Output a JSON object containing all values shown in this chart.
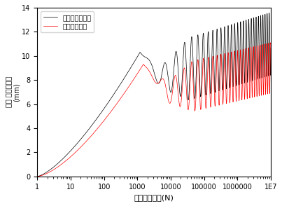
{
  "xlabel": "반복재하횟수(N)",
  "ylabel": "레일 누적침하량\n(mm)",
  "xlim": [
    1,
    10000000.0
  ],
  "ylim": [
    0,
    14
  ],
  "yticks": [
    0,
    2,
    4,
    6,
    8,
    10,
    12,
    14
  ],
  "legend_black": "블록식보강옹벽",
  "legend_red": "강성보강옹벽",
  "black_color": "#000000",
  "red_color": "#ff0000",
  "black_upper_final": 13.5,
  "black_lower_final": 8.5,
  "red_upper_final": 10.5,
  "red_lower_final": 7.5
}
